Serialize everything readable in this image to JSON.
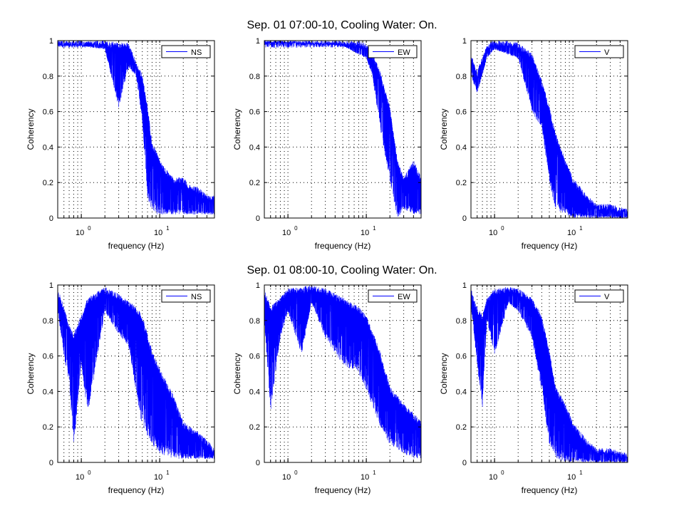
{
  "row_titles": [
    "Sep. 01 07:00-10, Cooling Water: On.",
    "Sep. 01 08:00-10, Cooling Water: On."
  ],
  "colors": {
    "line": "#0000ff",
    "axes": "#000000",
    "grid": "#000000",
    "background": "#ffffff"
  },
  "chart_data": [
    {
      "type": "line",
      "row": 0,
      "col": 0,
      "legend": "NS",
      "xlabel": "frequency (Hz)",
      "ylabel": "Coherency",
      "xscale": "log",
      "xlim": [
        0.5,
        50
      ],
      "ylim": [
        0,
        1
      ],
      "yticks": [
        "0",
        "0.2",
        "0.4",
        "0.6",
        "0.8",
        "1"
      ],
      "xticks": [
        {
          "base": "10",
          "exp": "0",
          "value": 1
        },
        {
          "base": "10",
          "exp": "1",
          "value": 10
        }
      ],
      "grid": "dotted",
      "legend_position": "top-right",
      "series": [
        {
          "x": [
            0.5,
            0.8,
            1,
            2,
            3,
            4,
            5,
            6,
            7,
            8,
            9,
            10,
            12,
            15,
            20,
            25,
            30,
            40,
            50
          ],
          "y": [
            0.99,
            0.98,
            0.99,
            0.97,
            0.96,
            0.96,
            0.85,
            0.78,
            0.6,
            0.4,
            0.35,
            0.3,
            0.25,
            0.2,
            0.2,
            0.15,
            0.15,
            0.1,
            0.1
          ],
          "y_min": [
            0.97,
            0.97,
            0.97,
            0.95,
            0.62,
            0.85,
            0.8,
            0.55,
            0.1,
            0.05,
            0.02,
            0.02,
            0.02,
            0.02,
            0.02,
            0.02,
            0.02,
            0.02,
            0.02
          ]
        }
      ]
    },
    {
      "type": "line",
      "row": 0,
      "col": 1,
      "legend": "EW",
      "xlabel": "frequency (Hz)",
      "ylabel": "Coherency",
      "xscale": "log",
      "xlim": [
        0.5,
        50
      ],
      "ylim": [
        0,
        1
      ],
      "yticks": [
        "0",
        "0.2",
        "0.4",
        "0.6",
        "0.8",
        "1"
      ],
      "xticks": [
        {
          "base": "10",
          "exp": "0",
          "value": 1
        },
        {
          "base": "10",
          "exp": "1",
          "value": 10
        }
      ],
      "grid": "dotted",
      "legend_position": "top-right",
      "series": [
        {
          "x": [
            0.5,
            1,
            2,
            3,
            5,
            8,
            10,
            12,
            15,
            20,
            25,
            30,
            40,
            50
          ],
          "y": [
            1,
            0.99,
            0.99,
            0.99,
            0.98,
            0.97,
            0.95,
            0.9,
            0.8,
            0.6,
            0.3,
            0.2,
            0.3,
            0.2
          ],
          "y_min": [
            0.99,
            0.99,
            0.98,
            0.98,
            0.97,
            0.92,
            0.9,
            0.8,
            0.5,
            0.2,
            0.0,
            0.05,
            0.02,
            0.02
          ]
        }
      ]
    },
    {
      "type": "line",
      "row": 0,
      "col": 2,
      "legend": "V",
      "xlabel": "frequency (Hz)",
      "ylabel": "Coherency",
      "xscale": "log",
      "xlim": [
        0.5,
        50
      ],
      "ylim": [
        0,
        1
      ],
      "yticks": [
        "0",
        "0.2",
        "0.4",
        "0.6",
        "0.8",
        "1"
      ],
      "xticks": [
        {
          "base": "10",
          "exp": "0",
          "value": 1
        },
        {
          "base": "10",
          "exp": "1",
          "value": 10
        }
      ],
      "grid": "dotted",
      "legend_position": "top-right",
      "series": [
        {
          "x": [
            0.5,
            0.6,
            0.8,
            1,
            2,
            3,
            4,
            5,
            6,
            8,
            10,
            15,
            20,
            30,
            50
          ],
          "y": [
            0.9,
            0.8,
            0.95,
            0.98,
            0.96,
            0.9,
            0.75,
            0.6,
            0.45,
            0.3,
            0.2,
            0.1,
            0.05,
            0.05,
            0.02
          ],
          "y_min": [
            0.8,
            0.7,
            0.9,
            0.95,
            0.9,
            0.6,
            0.5,
            0.2,
            0.05,
            0.02,
            0.0,
            0.0,
            0.0,
            0.0,
            0.0
          ]
        }
      ]
    },
    {
      "type": "line",
      "row": 1,
      "col": 0,
      "legend": "NS",
      "xlabel": "frequency (Hz)",
      "ylabel": "Coherency",
      "xscale": "log",
      "xlim": [
        0.5,
        50
      ],
      "ylim": [
        0,
        1
      ],
      "yticks": [
        "0",
        "0.2",
        "0.4",
        "0.6",
        "0.8",
        "1"
      ],
      "xticks": [
        {
          "base": "10",
          "exp": "0",
          "value": 1
        },
        {
          "base": "10",
          "exp": "1",
          "value": 10
        }
      ],
      "grid": "dotted",
      "legend_position": "top-right",
      "series": [
        {
          "x": [
            0.5,
            0.6,
            0.7,
            0.8,
            1,
            1.2,
            2,
            3,
            4,
            5,
            6,
            8,
            10,
            15,
            20,
            30,
            40,
            50
          ],
          "y": [
            0.95,
            0.85,
            0.75,
            0.7,
            0.8,
            0.9,
            0.96,
            0.92,
            0.88,
            0.85,
            0.8,
            0.6,
            0.5,
            0.35,
            0.2,
            0.15,
            0.1,
            0.05
          ],
          "y_min": [
            0.85,
            0.6,
            0.45,
            0.08,
            0.55,
            0.26,
            0.85,
            0.72,
            0.65,
            0.4,
            0.2,
            0.1,
            0.05,
            0.02,
            0.02,
            0.02,
            0.02,
            0.02
          ]
        }
      ]
    },
    {
      "type": "line",
      "row": 1,
      "col": 1,
      "legend": "EW",
      "xlabel": "frequency (Hz)",
      "ylabel": "Coherency",
      "xscale": "log",
      "xlim": [
        0.5,
        50
      ],
      "ylim": [
        0,
        1
      ],
      "yticks": [
        "0",
        "0.2",
        "0.4",
        "0.6",
        "0.8",
        "1"
      ],
      "xticks": [
        {
          "base": "10",
          "exp": "0",
          "value": 1
        },
        {
          "base": "10",
          "exp": "1",
          "value": 10
        }
      ],
      "grid": "dotted",
      "legend_position": "top-right",
      "series": [
        {
          "x": [
            0.5,
            0.6,
            0.8,
            1,
            1.5,
            2,
            3,
            5,
            8,
            10,
            15,
            20,
            30,
            40,
            50
          ],
          "y": [
            0.95,
            0.85,
            0.9,
            0.95,
            0.96,
            0.97,
            0.95,
            0.9,
            0.85,
            0.8,
            0.6,
            0.4,
            0.3,
            0.25,
            0.2
          ],
          "y_min": [
            0.8,
            0.27,
            0.7,
            0.85,
            0.6,
            0.9,
            0.7,
            0.55,
            0.5,
            0.4,
            0.2,
            0.1,
            0.05,
            0.02,
            0.02
          ]
        }
      ]
    },
    {
      "type": "line",
      "row": 1,
      "col": 2,
      "legend": "V",
      "xlabel": "frequency (Hz)",
      "ylabel": "Coherency",
      "xscale": "log",
      "xlim": [
        0.5,
        50
      ],
      "ylim": [
        0,
        1
      ],
      "yticks": [
        "0",
        "0.2",
        "0.4",
        "0.6",
        "0.8",
        "1"
      ],
      "xticks": [
        {
          "base": "10",
          "exp": "0",
          "value": 1
        },
        {
          "base": "10",
          "exp": "1",
          "value": 10
        }
      ],
      "grid": "dotted",
      "legend_position": "top-right",
      "series": [
        {
          "x": [
            0.5,
            0.6,
            0.7,
            0.8,
            1,
            1.5,
            2,
            3,
            4,
            5,
            6,
            8,
            10,
            15,
            20,
            30,
            50
          ],
          "y": [
            0.95,
            0.85,
            0.8,
            0.9,
            0.95,
            0.96,
            0.95,
            0.9,
            0.8,
            0.6,
            0.4,
            0.3,
            0.2,
            0.1,
            0.05,
            0.05,
            0.02
          ],
          "y_min": [
            0.88,
            0.55,
            0.3,
            0.8,
            0.6,
            0.9,
            0.85,
            0.7,
            0.4,
            0.1,
            0.02,
            0.0,
            0.0,
            0.0,
            0.0,
            0.0,
            0.0
          ]
        }
      ]
    }
  ]
}
